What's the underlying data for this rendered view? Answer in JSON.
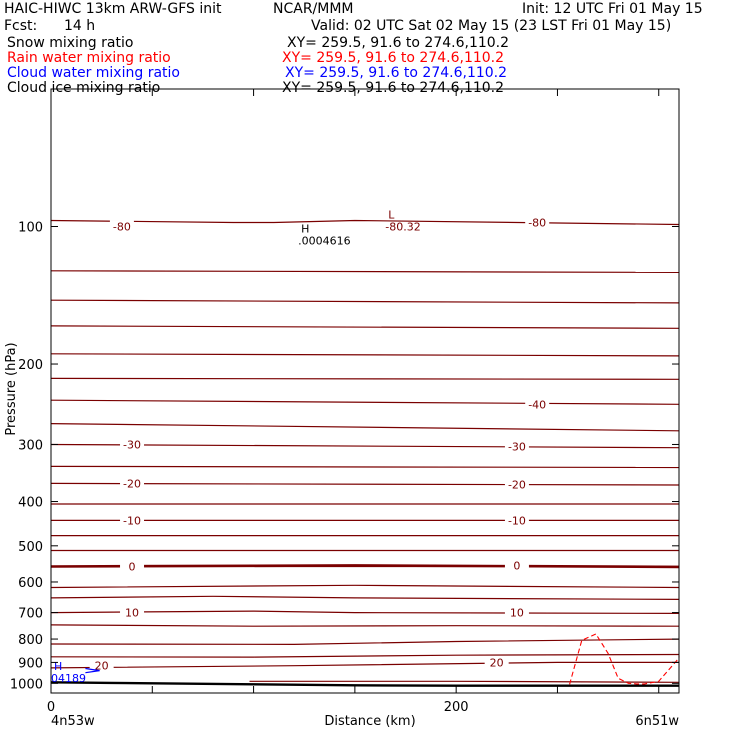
{
  "header": {
    "title": "HAIC-HIWC 13km ARW-GFS init",
    "org": "NCAR/MMM",
    "init": "Init: 12 UTC Fri 01 May 15",
    "fcst_label": "Fcst:",
    "fcst_value": "14 h",
    "valid": "Valid: 02 UTC Sat 02 May 15 (23 LST Fri 01 May 15)"
  },
  "fields": [
    {
      "name": "Snow mixing ratio",
      "xy": "XY= 259.5, 91.6 to 274.6,110.2",
      "color": "#000000"
    },
    {
      "name": "Rain water mixing ratio",
      "xy": "XY= 259.5, 91.6 to 274.6,110.2",
      "color": "#ff0000"
    },
    {
      "name": "Cloud water mixing ratio",
      "xy": "XY= 259.5, 91.6 to 274.6,110.2",
      "color": "#0000ff"
    },
    {
      "name": "Cloud ice mixing ratio",
      "xy": "XY= 259.5, 91.6 to 274.6,110.2",
      "color": "#000000"
    }
  ],
  "colors": {
    "temperature": "#7a0000",
    "rain": "#ff0000",
    "cloud_water": "#0000ff",
    "terrain": "#000000"
  },
  "chart_data": {
    "type": "line",
    "xlabel": "Distance (km)",
    "ylabel": "Pressure (hPa)",
    "xlim": [
      0,
      310
    ],
    "ylim": [
      1050,
      50
    ],
    "y_scale": "log",
    "x_ticks": [
      0,
      50,
      100,
      150,
      200,
      250,
      300
    ],
    "x_tick_labels": [
      {
        "value": 0,
        "label": "0"
      },
      {
        "value": 200,
        "label": "200"
      }
    ],
    "y_ticks": [
      100,
      200,
      300,
      400,
      500,
      600,
      700,
      800,
      900,
      1000
    ],
    "y_tick_labels": [
      "100",
      "200",
      "300",
      "400",
      "500",
      "600",
      "700",
      "800",
      "900",
      "1000"
    ],
    "endpoint_labels": {
      "left": "4n53w",
      "right": "6n51w"
    },
    "temperature_contours": [
      {
        "x": [
          0,
          90,
          110,
          150,
          310
        ],
        "p": [
          97,
          98,
          98,
          97,
          99
        ]
      },
      {
        "x": [
          0,
          310
        ],
        "p": [
          125,
          126
        ]
      },
      {
        "x": [
          0,
          310
        ],
        "p": [
          145,
          147
        ]
      },
      {
        "x": [
          0,
          310
        ],
        "p": [
          165,
          167
        ]
      },
      {
        "x": [
          0,
          310
        ],
        "p": [
          190,
          192
        ]
      },
      {
        "x": [
          0,
          310
        ],
        "p": [
          215,
          216
        ]
      },
      {
        "x": [
          0,
          310
        ],
        "p": [
          240,
          245
        ]
      },
      {
        "x": [
          0,
          310
        ],
        "p": [
          270,
          280
        ]
      },
      {
        "x": [
          0,
          310
        ],
        "p": [
          300,
          305
        ]
      },
      {
        "x": [
          0,
          310
        ],
        "p": [
          335,
          337
        ]
      },
      {
        "x": [
          0,
          310
        ],
        "p": [
          365,
          368
        ]
      },
      {
        "x": [
          0,
          310
        ],
        "p": [
          405,
          405
        ]
      },
      {
        "x": [
          0,
          310
        ],
        "p": [
          440,
          440
        ]
      },
      {
        "x": [
          0,
          310
        ],
        "p": [
          475,
          475
        ]
      },
      {
        "x": [
          0,
          310
        ],
        "p": [
          512,
          512
        ]
      },
      {
        "x": [
          0,
          310
        ],
        "p": [
          555,
          555
        ]
      },
      {
        "x": [
          0,
          150,
          310
        ],
        "p": [
          617,
          610,
          617
        ]
      },
      {
        "x": [
          0,
          80,
          150,
          310
        ],
        "p": [
          650,
          645,
          650,
          655
        ]
      },
      {
        "x": [
          0,
          100,
          150,
          310
        ],
        "p": [
          700,
          695,
          700,
          703
        ]
      },
      {
        "x": [
          0,
          100,
          200,
          310
        ],
        "p": [
          745,
          750,
          748,
          750
        ]
      },
      {
        "x": [
          0,
          120,
          200,
          310
        ],
        "p": [
          820,
          822,
          810,
          800
        ]
      },
      {
        "x": [
          0,
          100,
          200,
          310
        ],
        "p": [
          875,
          876,
          868,
          865
        ]
      },
      {
        "x": [
          0,
          120,
          250,
          310
        ],
        "p": [
          925,
          915,
          900,
          900
        ]
      },
      {
        "x": [
          98,
          200,
          310
        ],
        "p": [
          990,
          990,
          995
        ]
      }
    ],
    "thick_contour": {
      "x": [
        0,
        150,
        310
      ],
      "p": [
        555,
        552,
        556
      ]
    },
    "contour_labels": [
      {
        "text": "-80",
        "x": 35,
        "p": 100
      },
      {
        "text": "-80",
        "x": 240,
        "p": 98
      },
      {
        "text": "-40",
        "x": 240,
        "p": 245
      },
      {
        "text": "-30",
        "x": 40,
        "p": 300
      },
      {
        "text": "-30",
        "x": 230,
        "p": 303
      },
      {
        "text": "-20",
        "x": 40,
        "p": 365
      },
      {
        "text": "-20",
        "x": 230,
        "p": 367
      },
      {
        "text": "-10",
        "x": 40,
        "p": 440
      },
      {
        "text": "-10",
        "x": 230,
        "p": 440
      },
      {
        "text": "0",
        "x": 40,
        "p": 555
      },
      {
        "text": "0",
        "x": 230,
        "p": 552
      },
      {
        "text": "10",
        "x": 40,
        "p": 700
      },
      {
        "text": "10",
        "x": 230,
        "p": 700
      },
      {
        "text": "20",
        "x": 25,
        "p": 915
      },
      {
        "text": "20",
        "x": 220,
        "p": 900
      }
    ],
    "extremes": [
      {
        "symbol": "H",
        "value": ".0004616",
        "x": 122,
        "p": 103,
        "color": "#000000"
      },
      {
        "symbol": "L",
        "value": "-80.32",
        "x": 165,
        "p": 96,
        "color": "#7a0000"
      },
      {
        "symbol": "H",
        "value": "04189",
        "x": 0,
        "p": 935,
        "color": "#0000ff"
      }
    ],
    "rain_contour": {
      "x": [
        256,
        262,
        269,
        275,
        280,
        285,
        289,
        293,
        300,
        310,
        310
      ],
      "p": [
        1005,
        805,
        780,
        860,
        975,
        1000,
        1003,
        1003,
        990,
        880,
        870
      ]
    },
    "cloud_water_contour": {
      "x": [
        17,
        24,
        17
      ],
      "p": [
        928,
        938,
        948
      ]
    },
    "terrain": {
      "x": [
        0,
        30,
        100,
        150,
        200,
        310
      ],
      "p": [
        995,
        998,
        1005,
        1010,
        1012,
        1012
      ]
    }
  }
}
